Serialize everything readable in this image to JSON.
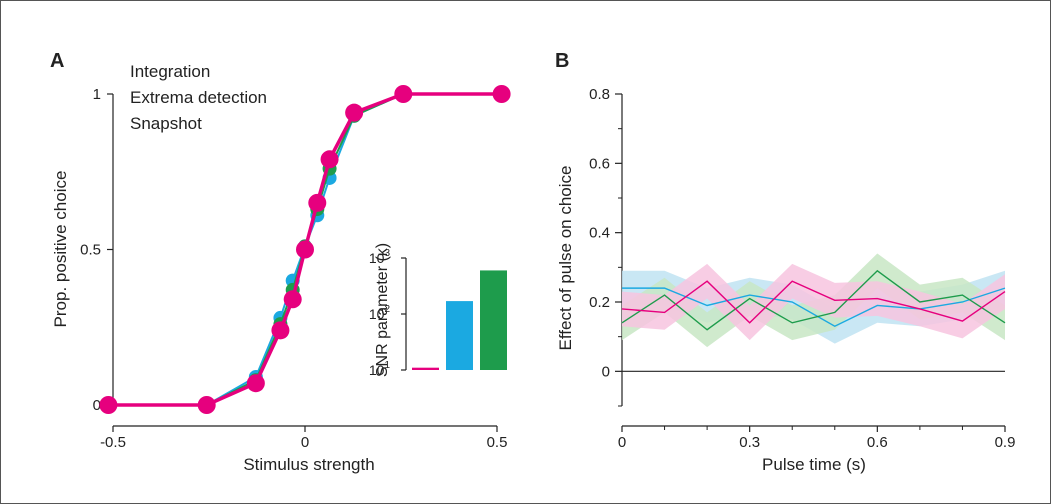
{
  "chart_data": [
    {
      "panel": "A",
      "type": "line",
      "xlabel": "Stimulus strength",
      "ylabel": "Prop. positive choice",
      "xlim": [
        -0.5,
        0.5
      ],
      "ylim": [
        0,
        1
      ],
      "xticks": [
        "-0.5",
        "0",
        "0.5"
      ],
      "yticks": [
        "0",
        "0.5",
        "1"
      ],
      "x": [
        -0.512,
        -0.256,
        -0.128,
        -0.064,
        -0.032,
        0,
        0.032,
        0.064,
        0.128,
        0.256,
        0.512
      ],
      "series": [
        {
          "name": "Integration",
          "color": "#e6007e",
          "values": [
            0,
            0,
            0.07,
            0.24,
            0.34,
            0.5,
            0.65,
            0.79,
            0.94,
            1,
            1
          ]
        },
        {
          "name": "Extrema detection",
          "color": "#1ba9e1",
          "values": [
            0,
            0,
            0.09,
            0.28,
            0.4,
            0.51,
            0.61,
            0.73,
            0.93,
            1,
            1
          ]
        },
        {
          "name": "Snapshot",
          "color": "#1e9c4c",
          "values": [
            0,
            0,
            0.08,
            0.26,
            0.37,
            0.51,
            0.63,
            0.76,
            0.93,
            1,
            1
          ]
        }
      ],
      "legend": [
        "Integration",
        "Extrema detection",
        "Snapshot"
      ],
      "legend_position": "top-left",
      "inset": {
        "type": "bar",
        "ylabel": "SNR parameter (κ)",
        "yscale": "log",
        "ylim": [
          10,
          1000
        ],
        "yticks": [
          {
            "base": "10",
            "exp": "1"
          },
          {
            "base": "10",
            "exp": "2"
          },
          {
            "base": "10",
            "exp": "3"
          }
        ],
        "bars": [
          {
            "model": "Integration",
            "value": 11,
            "color": "#e6007e"
          },
          {
            "model": "Extrema detection",
            "value": 170,
            "color": "#1ba9e1"
          },
          {
            "model": "Snapshot",
            "value": 600,
            "color": "#1e9c4c"
          }
        ]
      }
    },
    {
      "panel": "B",
      "type": "line",
      "xlabel": "Pulse time (s)",
      "ylabel": "Effect of pulse on choice",
      "xlim": [
        0,
        0.9
      ],
      "ylim": [
        -0.1,
        0.8
      ],
      "xticks": [
        "0",
        "0.3",
        "0.6",
        "0.9"
      ],
      "yticks": [
        "0",
        "0.2",
        "0.4",
        "0.6",
        "0.8"
      ],
      "x": [
        0,
        0.1,
        0.2,
        0.3,
        0.4,
        0.5,
        0.6,
        0.7,
        0.8,
        0.9
      ],
      "series": [
        {
          "name": "Extrema detection",
          "color": "#1ba9e1",
          "band_color": "#bfe3f2",
          "values": [
            0.24,
            0.24,
            0.19,
            0.22,
            0.2,
            0.13,
            0.19,
            0.18,
            0.2,
            0.24
          ],
          "band": 0.05
        },
        {
          "name": "Snapshot",
          "color": "#1e9c4c",
          "band_color": "#c8e6c4",
          "values": [
            0.14,
            0.22,
            0.12,
            0.21,
            0.14,
            0.17,
            0.29,
            0.2,
            0.22,
            0.14
          ],
          "band": 0.05
        },
        {
          "name": "Integration",
          "color": "#e6007e",
          "band_color": "#f7c4df",
          "values": [
            0.18,
            0.17,
            0.26,
            0.14,
            0.26,
            0.205,
            0.21,
            0.18,
            0.145,
            0.23
          ],
          "band": 0.05
        }
      ],
      "zero_line": 0
    }
  ],
  "panel_labels": {
    "a": "A",
    "b": "B"
  }
}
